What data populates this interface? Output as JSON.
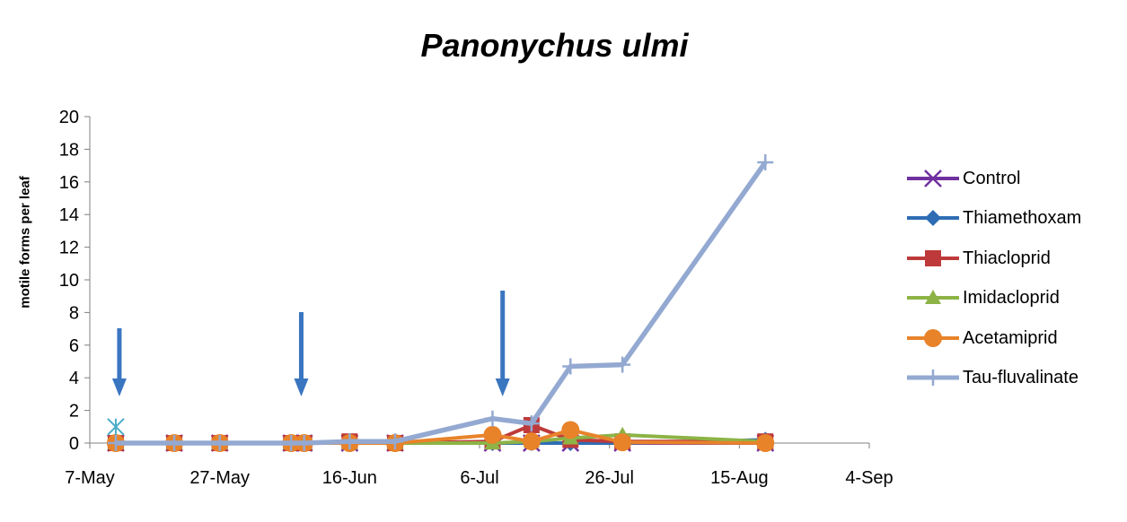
{
  "chart_data": {
    "type": "line",
    "title": "Panonychus ulmi",
    "xlabel": "",
    "ylabel": "motile forms per leaf",
    "x_axis": {
      "type": "date",
      "ticks": [
        "7-May",
        "27-May",
        "16-Jun",
        "6-Jul",
        "26-Jul",
        "15-Aug",
        "4-Sep"
      ],
      "range": [
        "2012-05-07",
        "2012-09-04"
      ]
    },
    "ylim": [
      0,
      20
    ],
    "yticks": [
      0,
      2,
      4,
      6,
      8,
      10,
      12,
      14,
      16,
      18,
      20
    ],
    "grid": false,
    "legend_position": "right",
    "series": [
      {
        "name": "Control",
        "color": "#7030a0",
        "marker": "x",
        "points": [
          [
            "2012-05-11",
            0
          ],
          [
            "2012-05-20",
            0
          ],
          [
            "2012-05-27",
            0
          ],
          [
            "2012-06-07",
            0
          ],
          [
            "2012-06-09",
            0
          ],
          [
            "2012-06-16",
            0
          ],
          [
            "2012-06-23",
            0
          ],
          [
            "2012-07-08",
            0
          ],
          [
            "2012-07-14",
            0
          ],
          [
            "2012-07-20",
            0
          ],
          [
            "2012-07-28",
            0
          ],
          [
            "2012-08-19",
            0
          ]
        ]
      },
      {
        "name": "Thiamethoxam",
        "color": "#2e6db4",
        "marker": "diamond",
        "points": [
          [
            "2012-05-11",
            0
          ],
          [
            "2012-05-20",
            0
          ],
          [
            "2012-05-27",
            0
          ],
          [
            "2012-06-07",
            0
          ],
          [
            "2012-06-09",
            0
          ],
          [
            "2012-06-16",
            0
          ],
          [
            "2012-06-23",
            0
          ],
          [
            "2012-07-08",
            0
          ],
          [
            "2012-07-14",
            0
          ],
          [
            "2012-07-20",
            0
          ],
          [
            "2012-07-28",
            0
          ],
          [
            "2012-08-19",
            0.2
          ]
        ]
      },
      {
        "name": "Thiacloprid",
        "color": "#be3a3a",
        "marker": "square",
        "points": [
          [
            "2012-05-11",
            0
          ],
          [
            "2012-05-20",
            0
          ],
          [
            "2012-05-27",
            0
          ],
          [
            "2012-06-07",
            0
          ],
          [
            "2012-06-09",
            0
          ],
          [
            "2012-06-16",
            0.1
          ],
          [
            "2012-06-23",
            0
          ],
          [
            "2012-07-08",
            0.1
          ],
          [
            "2012-07-14",
            1.1
          ],
          [
            "2012-07-20",
            0.2
          ],
          [
            "2012-07-28",
            0.1
          ],
          [
            "2012-08-19",
            0.1
          ]
        ]
      },
      {
        "name": "Imidacloprid",
        "color": "#8db346",
        "marker": "triangle",
        "points": [
          [
            "2012-05-11",
            0
          ],
          [
            "2012-05-20",
            0
          ],
          [
            "2012-05-27",
            0
          ],
          [
            "2012-06-07",
            0
          ],
          [
            "2012-06-09",
            0
          ],
          [
            "2012-06-16",
            0
          ],
          [
            "2012-06-23",
            0
          ],
          [
            "2012-07-08",
            0
          ],
          [
            "2012-07-14",
            0.1
          ],
          [
            "2012-07-20",
            0.3
          ],
          [
            "2012-07-28",
            0.5
          ],
          [
            "2012-08-19",
            0.1
          ]
        ]
      },
      {
        "name": "Acetamiprid",
        "color": "#e8832a",
        "marker": "circle",
        "points": [
          [
            "2012-05-11",
            0
          ],
          [
            "2012-05-20",
            0
          ],
          [
            "2012-05-27",
            0
          ],
          [
            "2012-06-07",
            0
          ],
          [
            "2012-06-09",
            0
          ],
          [
            "2012-06-16",
            0
          ],
          [
            "2012-06-23",
            0
          ],
          [
            "2012-07-08",
            0.5
          ],
          [
            "2012-07-14",
            0.1
          ],
          [
            "2012-07-20",
            0.8
          ],
          [
            "2012-07-28",
            0.05
          ],
          [
            "2012-08-19",
            0
          ]
        ]
      },
      {
        "name": "Tau-fluvalinate",
        "color": "#93a9d1",
        "marker": "plus",
        "points": [
          [
            "2012-05-11",
            0
          ],
          [
            "2012-05-20",
            0
          ],
          [
            "2012-05-27",
            0
          ],
          [
            "2012-06-07",
            0
          ],
          [
            "2012-06-09",
            0
          ],
          [
            "2012-06-16",
            0.1
          ],
          [
            "2012-06-23",
            0.1
          ],
          [
            "2012-07-08",
            1.5
          ],
          [
            "2012-07-14",
            1.2
          ],
          [
            "2012-07-20",
            4.7
          ],
          [
            "2012-07-28",
            4.8
          ],
          [
            "2012-08-19",
            17.2
          ]
        ]
      }
    ],
    "extra_points": [
      {
        "x": "2012-05-11",
        "y": 1.0,
        "color": "#4aacc6",
        "marker": "asterisk"
      }
    ],
    "annotations": [
      {
        "type": "arrow",
        "direction": "down",
        "x": "2012-05-11",
        "color": "#3a75c0"
      },
      {
        "type": "arrow",
        "direction": "down",
        "x": "2012-06-08",
        "color": "#3a75c0"
      },
      {
        "type": "arrow",
        "direction": "down",
        "x": "2012-07-09",
        "color": "#3a75c0"
      }
    ]
  }
}
